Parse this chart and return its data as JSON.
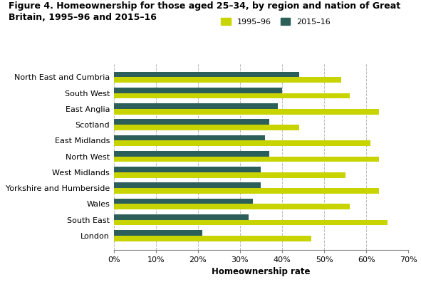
{
  "title_line1": "Figure 4. Homeownership for those aged 25–34, by region and nation of Great",
  "title_line2": "Britain, 1995–96 and 2015–16",
  "xlabel": "Homeownership rate",
  "regions": [
    "North East and Cumbria",
    "South West",
    "East Anglia",
    "Scotland",
    "East Midlands",
    "North West",
    "West Midlands",
    "Yorkshire and Humberside",
    "Wales",
    "South East",
    "London"
  ],
  "values_1995": [
    54,
    56,
    63,
    44,
    61,
    63,
    55,
    63,
    56,
    65,
    47
  ],
  "values_2015": [
    44,
    40,
    39,
    37,
    36,
    37,
    35,
    35,
    33,
    32,
    21
  ],
  "color_1995": "#c8d400",
  "color_2015": "#2d5f5a",
  "legend_1995": "1995–96",
  "legend_2015": "2015–16",
  "xlim": [
    0,
    70
  ],
  "xticks": [
    0,
    10,
    20,
    30,
    40,
    50,
    60,
    70
  ],
  "xtick_labels": [
    "0%",
    "10%",
    "20%",
    "30%",
    "40%",
    "50%",
    "60%",
    "70%"
  ],
  "background_color": "#ffffff",
  "grid_color": "#bbbbbb",
  "title_fontsize": 9,
  "axis_label_fontsize": 8.5,
  "tick_fontsize": 8,
  "legend_fontsize": 8,
  "bar_height": 0.35
}
